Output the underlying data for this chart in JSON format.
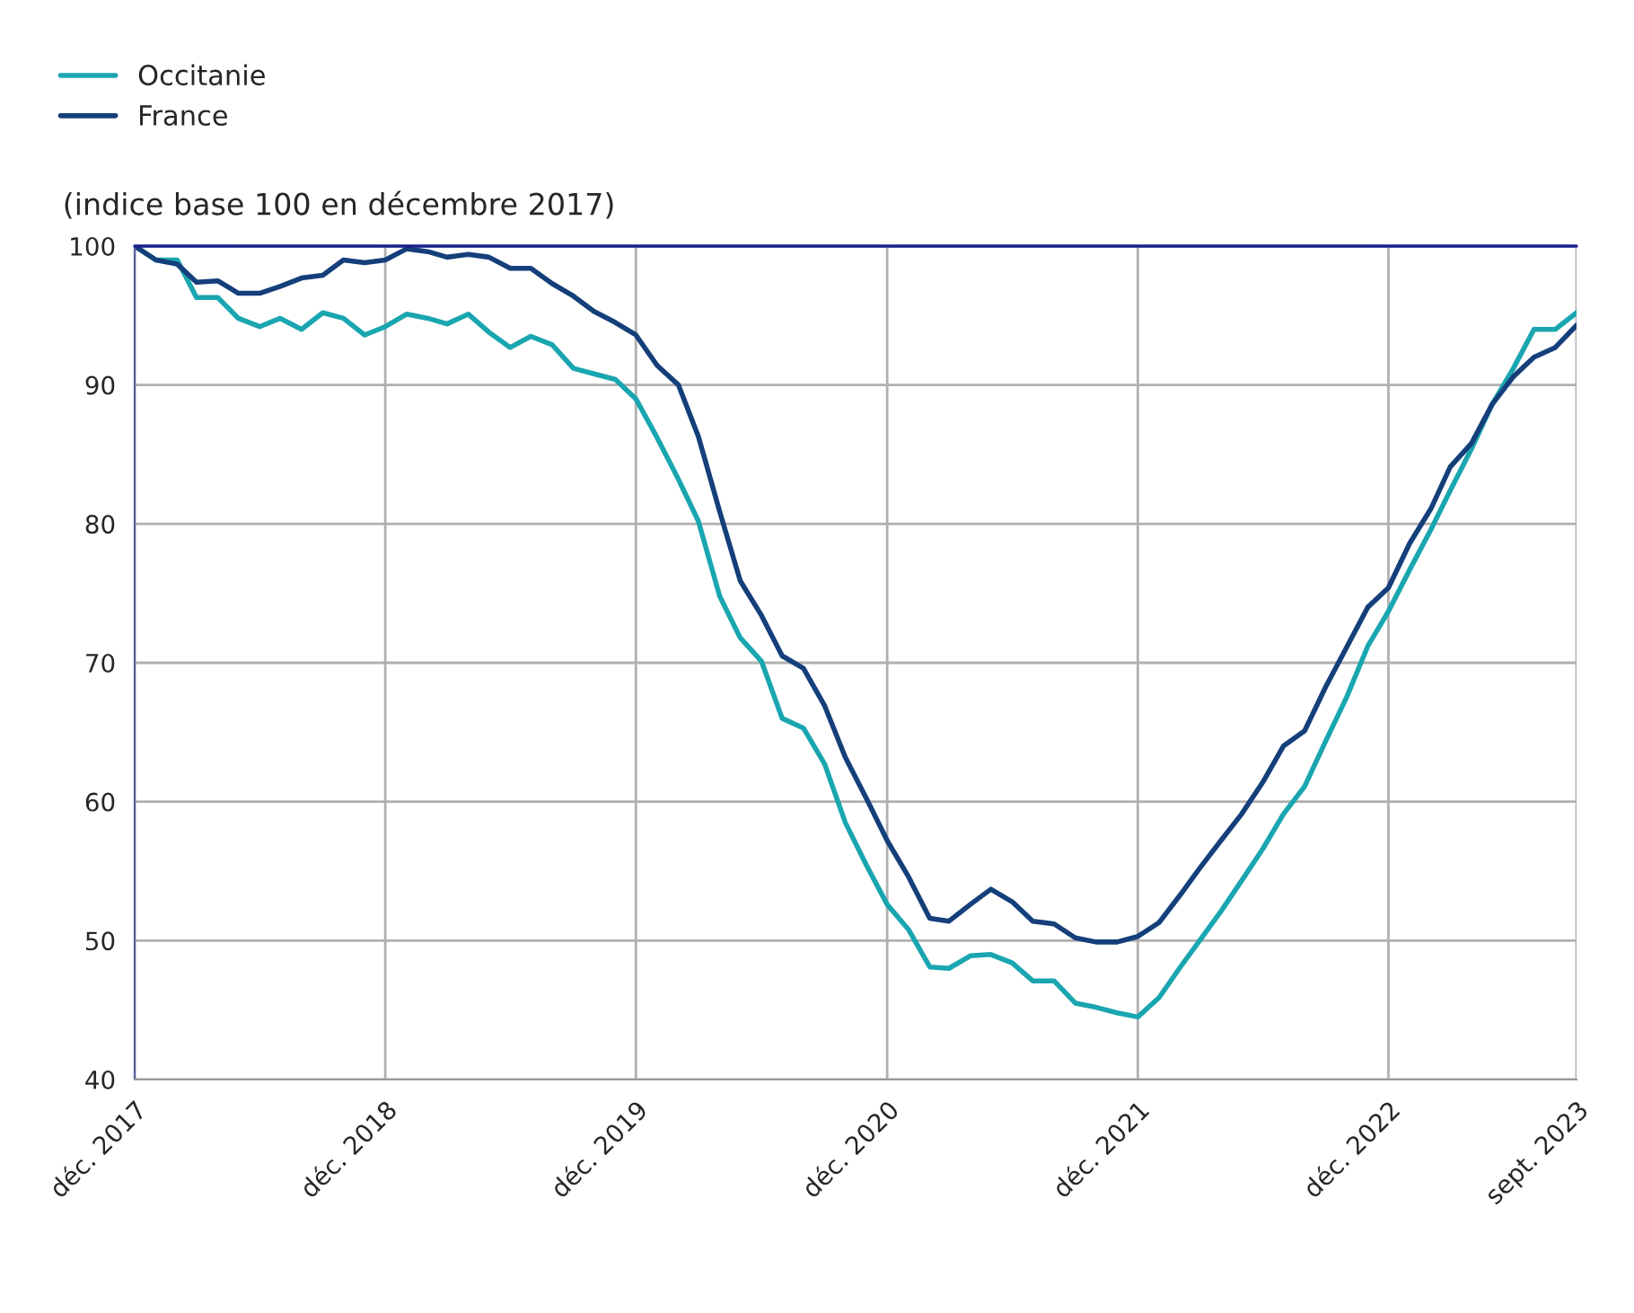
{
  "chart_data": {
    "type": "line",
    "ylabel": "(indice base 100 en décembre 2017)",
    "x": [
      "2017-12",
      "2018-01",
      "2018-02",
      "2018-03",
      "2018-04",
      "2018-05",
      "2018-06",
      "2018-07",
      "2018-08",
      "2018-09",
      "2018-10",
      "2018-11",
      "2018-12",
      "2019-01",
      "2019-02",
      "2019-03",
      "2019-04",
      "2019-05",
      "2019-06",
      "2019-07",
      "2019-08",
      "2019-09",
      "2019-10",
      "2019-11",
      "2019-12",
      "2020-01",
      "2020-02",
      "2020-03",
      "2020-04",
      "2020-05",
      "2020-06",
      "2020-07",
      "2020-08",
      "2020-09",
      "2020-10",
      "2020-11",
      "2020-12",
      "2021-01",
      "2021-02",
      "2021-03",
      "2021-04",
      "2021-05",
      "2021-06",
      "2021-07",
      "2021-08",
      "2021-09",
      "2021-10",
      "2021-11",
      "2021-12",
      "2022-01",
      "2022-02",
      "2022-03",
      "2022-04",
      "2022-05",
      "2022-06",
      "2022-07",
      "2022-08",
      "2022-09",
      "2022-10",
      "2022-11",
      "2022-12",
      "2023-01",
      "2023-02",
      "2023-03",
      "2023-04",
      "2023-05",
      "2023-06",
      "2023-07",
      "2023-08",
      "2023-09"
    ],
    "series": [
      {
        "name": "Occitanie",
        "color": "#1aa6b0",
        "values": [
          100,
          99,
          99,
          96.3,
          96.3,
          94.8,
          94.2,
          94.8,
          94.0,
          95.2,
          94.8,
          93.6,
          94.2,
          95.1,
          94.8,
          94.4,
          95.1,
          93.8,
          92.7,
          93.5,
          92.9,
          91.2,
          90.8,
          90.4,
          89.0,
          86.2,
          83.2,
          80.2,
          74.8,
          71.8,
          70.1,
          66.0,
          65.3,
          62.7,
          58.5,
          55.4,
          52.6,
          50.8,
          48.1,
          48.0,
          48.9,
          49.0,
          48.4,
          47.1,
          47.1,
          45.5,
          45.2,
          44.8,
          44.5,
          45.9,
          48.1,
          50.0,
          52.1,
          54.3,
          56.6,
          59.1,
          61.1,
          64.4,
          67.5,
          71.2,
          73.7,
          76.7,
          79.6,
          82.4,
          85.4,
          88.6,
          91.2,
          94.0,
          94.0,
          95.2
        ]
      },
      {
        "name": "France",
        "color": "#143f7a",
        "values": [
          100,
          99.0,
          98.7,
          97.4,
          97.5,
          96.6,
          96.6,
          97.1,
          97.7,
          97.9,
          99.0,
          98.8,
          99.0,
          99.8,
          99.6,
          99.2,
          99.4,
          99.2,
          98.4,
          98.4,
          97.3,
          96.4,
          95.3,
          94.5,
          93.6,
          91.4,
          90.0,
          86.3,
          80.9,
          75.9,
          73.4,
          70.5,
          69.6,
          66.9,
          63.2,
          60.2,
          57.2,
          54.6,
          51.6,
          51.4,
          52.6,
          53.7,
          52.8,
          51.4,
          51.2,
          50.2,
          49.9,
          49.9,
          50.3,
          51.3,
          53.3,
          55.2,
          57.2,
          59.1,
          61.4,
          64.0,
          65.1,
          68.3,
          71.1,
          74.0,
          75.4,
          78.6,
          81.1,
          84.1,
          85.8,
          88.6,
          90.6,
          92.0,
          92.7,
          94.3
        ]
      }
    ],
    "xlim": [
      "2017-12",
      "2023-09"
    ],
    "xticks": [
      {
        "value": "2017-12",
        "label": "déc. 2017"
      },
      {
        "value": "2018-12",
        "label": "déc. 2018"
      },
      {
        "value": "2019-12",
        "label": "déc. 2019"
      },
      {
        "value": "2020-12",
        "label": "déc. 2020"
      },
      {
        "value": "2021-12",
        "label": "déc. 2021"
      },
      {
        "value": "2022-12",
        "label": "déc. 2022"
      },
      {
        "value": "2023-09",
        "label": "sept. 2023"
      }
    ],
    "ylim": [
      40,
      100
    ],
    "yticks": [
      40,
      50,
      60,
      70,
      80,
      90,
      100
    ],
    "ref_lines": [
      {
        "axis": "y",
        "value": 100,
        "label": null,
        "color": "#1a1f8c"
      }
    ],
    "grid": true,
    "legend": "top left",
    "marker": "none",
    "line_style": "solid"
  }
}
